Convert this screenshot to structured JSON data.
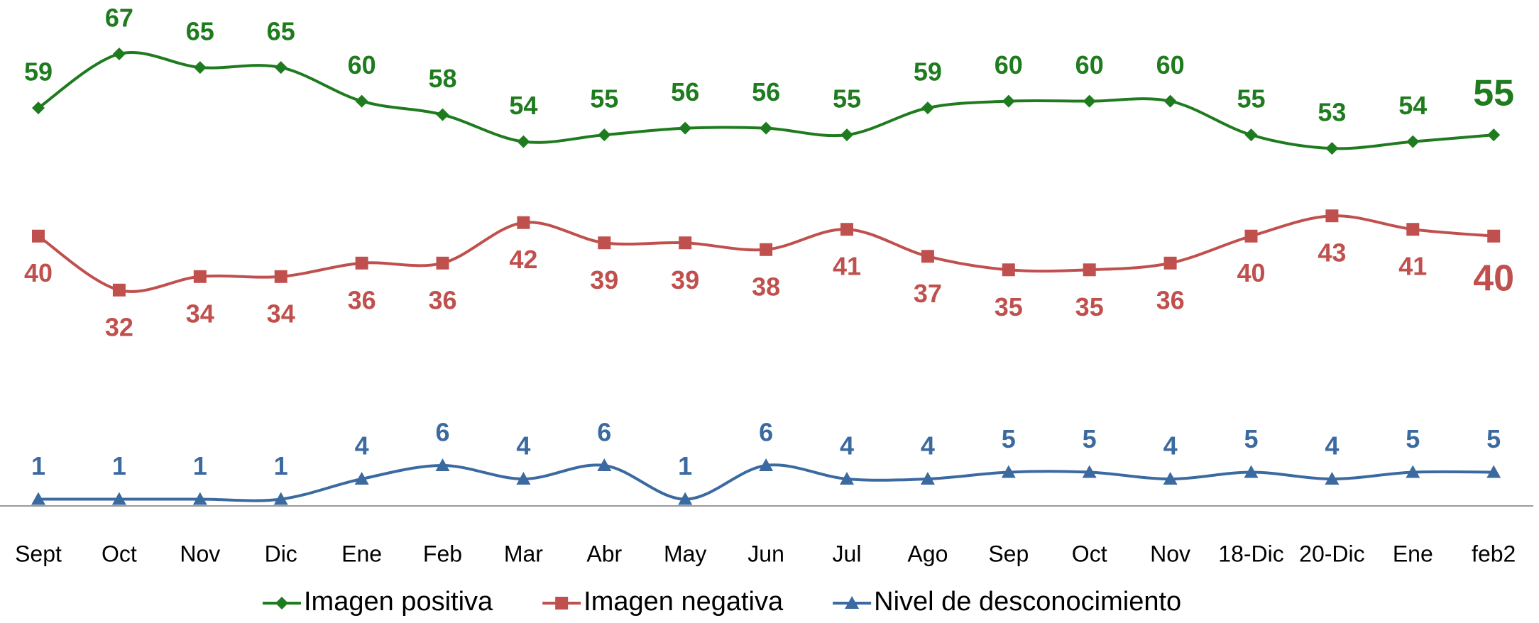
{
  "chart_data": {
    "type": "line",
    "categories": [
      "Sept",
      "Oct",
      "Nov",
      "Dic",
      "Ene",
      "Feb",
      "Mar",
      "Abr",
      "May",
      "Jun",
      "Jul",
      "Ago",
      "Sep",
      "Oct",
      "Nov",
      "18-Dic",
      "20-Dic",
      "Ene",
      "feb2"
    ],
    "series": [
      {
        "name": "Imagen positiva",
        "color": "#1e7b1e",
        "marker": "diamond",
        "values": [
          59,
          67,
          65,
          65,
          60,
          58,
          54,
          55,
          56,
          56,
          55,
          59,
          60,
          60,
          60,
          55,
          53,
          54,
          55
        ]
      },
      {
        "name": "Imagen negativa",
        "color": "#c0504d",
        "marker": "square",
        "values": [
          40,
          32,
          34,
          34,
          36,
          36,
          42,
          39,
          39,
          38,
          41,
          37,
          35,
          35,
          36,
          40,
          43,
          41,
          40
        ]
      },
      {
        "name": "Nivel de desconocimiento",
        "color": "#3b6aa0",
        "marker": "triangle",
        "values": [
          1,
          1,
          1,
          1,
          4,
          6,
          4,
          6,
          1,
          6,
          4,
          4,
          5,
          5,
          4,
          5,
          4,
          5,
          5
        ]
      }
    ],
    "ylim": [
      0,
      75
    ],
    "legend": "bottom"
  }
}
